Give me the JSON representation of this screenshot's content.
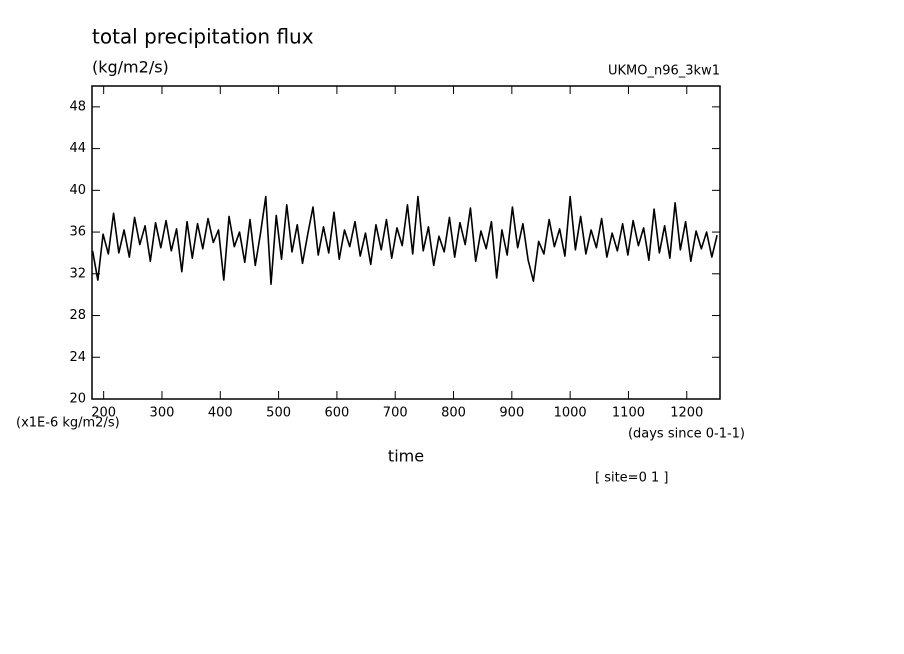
{
  "chart_data": {
    "type": "line",
    "title": "total precipitation flux",
    "units": "(kg/m2/s)",
    "subtitle": "UKMO_n96_3kw1",
    "y_label": "(x1E-6 kg/m2/s)",
    "x_label": "time",
    "x_units": "(days since 0-1-1)",
    "annotation": "[ site=0 1 ]",
    "xlim": [
      180,
      1257
    ],
    "ylim": [
      20,
      50
    ],
    "xticks": [
      200,
      300,
      400,
      500,
      600,
      700,
      800,
      900,
      1000,
      1100,
      1200
    ],
    "yticks": [
      20,
      24,
      28,
      32,
      36,
      40,
      44,
      48
    ],
    "x": [
      181,
      190,
      199,
      208,
      217,
      226,
      235,
      244,
      253,
      262,
      271,
      280,
      289,
      298,
      307,
      316,
      325,
      334,
      343,
      352,
      361,
      370,
      379,
      388,
      397,
      406,
      415,
      424,
      433,
      442,
      451,
      460,
      469,
      478,
      487,
      496,
      505,
      514,
      523,
      532,
      541,
      550,
      559,
      568,
      577,
      586,
      595,
      604,
      613,
      622,
      631,
      640,
      649,
      658,
      667,
      676,
      685,
      694,
      703,
      712,
      721,
      730,
      739,
      748,
      757,
      766,
      775,
      784,
      793,
      802,
      811,
      820,
      829,
      838,
      847,
      856,
      865,
      874,
      883,
      892,
      901,
      910,
      919,
      928,
      937,
      946,
      955,
      964,
      973,
      982,
      991,
      1000,
      1009,
      1018,
      1027,
      1036,
      1045,
      1054,
      1063,
      1072,
      1081,
      1090,
      1099,
      1108,
      1117,
      1126,
      1135,
      1144,
      1153,
      1162,
      1171,
      1180,
      1189,
      1198,
      1207,
      1216,
      1225,
      1234,
      1243,
      1252
    ],
    "series": [
      {
        "color": "#000000",
        "values": [
          34.2,
          31.4,
          35.8,
          33.9,
          37.8,
          34.0,
          36.2,
          33.6,
          37.4,
          34.8,
          36.6,
          33.2,
          36.9,
          34.5,
          37.1,
          34.2,
          36.3,
          32.2,
          37.0,
          33.5,
          36.8,
          34.4,
          37.3,
          35.0,
          36.2,
          31.4,
          37.5,
          34.6,
          36.0,
          33.1,
          37.2,
          32.8,
          35.9,
          39.4,
          31.0,
          37.6,
          33.4,
          38.6,
          34.1,
          36.7,
          33.0,
          35.8,
          38.4,
          33.8,
          36.5,
          34.0,
          37.9,
          33.4,
          36.2,
          34.6,
          37.0,
          33.7,
          35.9,
          32.9,
          36.7,
          34.3,
          37.2,
          33.5,
          36.4,
          34.7,
          38.6,
          33.9,
          39.4,
          34.2,
          36.5,
          32.8,
          35.6,
          34.1,
          37.4,
          33.6,
          36.9,
          34.8,
          38.3,
          33.2,
          36.1,
          34.4,
          37.0,
          31.6,
          36.2,
          33.8,
          38.4,
          34.5,
          36.8,
          33.3,
          31.3,
          35.1,
          33.9,
          37.2,
          34.6,
          36.3,
          33.7,
          39.4,
          34.3,
          37.5,
          33.9,
          36.2,
          34.5,
          37.3,
          33.6,
          35.9,
          34.2,
          36.8,
          33.8,
          37.1,
          34.7,
          36.4,
          33.3,
          38.2,
          34.0,
          36.6,
          33.5,
          38.8,
          34.3,
          37.0,
          33.2,
          36.1,
          34.4,
          36.0,
          33.6,
          35.7
        ]
      }
    ]
  }
}
